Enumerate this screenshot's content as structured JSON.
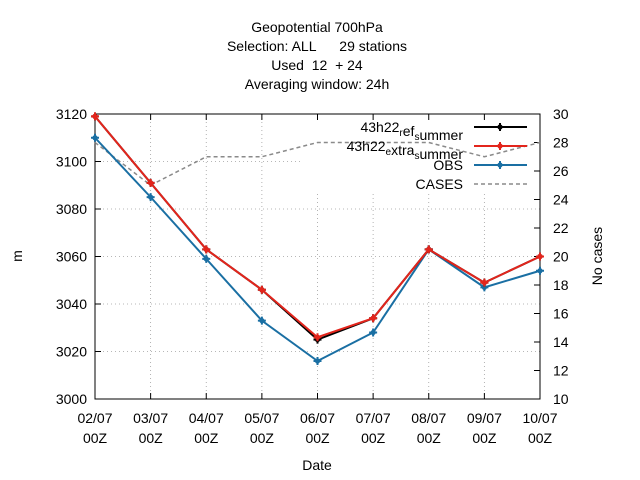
{
  "chart_data": {
    "type": "line",
    "title_lines": [
      "Geopotential 700hPa",
      "Selection: ALL      29 stations",
      "Used  12  + 24",
      "Averaging window: 24h"
    ],
    "xlabel": "Date",
    "ylabel": "m",
    "y2label": "No cases",
    "categories": [
      [
        "02/07",
        "00Z"
      ],
      [
        "03/07",
        "00Z"
      ],
      [
        "04/07",
        "00Z"
      ],
      [
        "05/07",
        "00Z"
      ],
      [
        "06/07",
        "00Z"
      ],
      [
        "07/07",
        "00Z"
      ],
      [
        "08/07",
        "00Z"
      ],
      [
        "09/07",
        "00Z"
      ],
      [
        "10/07",
        "00Z"
      ]
    ],
    "ylim": [
      3000,
      3120
    ],
    "yticks": [
      3000,
      3020,
      3040,
      3060,
      3080,
      3100,
      3120
    ],
    "y2lim": [
      10,
      30
    ],
    "y2ticks": [
      10,
      12,
      14,
      16,
      18,
      20,
      22,
      24,
      26,
      28,
      30
    ],
    "grid": true,
    "legend_position": "top-right",
    "series": [
      {
        "name": "43h22_ref_summer",
        "legend_parts": [
          [
            "43h22",
            0
          ],
          [
            "r",
            1
          ],
          [
            "ef",
            0
          ],
          [
            "s",
            1
          ],
          [
            "ummer",
            0
          ]
        ],
        "axis": "y1",
        "color": "#000000",
        "style": "solid",
        "marker": "plus",
        "values": [
          3119,
          3091,
          3063,
          3046,
          3025,
          3034,
          3063,
          3049,
          3060
        ]
      },
      {
        "name": "43h22_extra_summer",
        "legend_parts": [
          [
            "43h22",
            0
          ],
          [
            "e",
            1
          ],
          [
            "xtra",
            0
          ],
          [
            "s",
            1
          ],
          [
            "ummer",
            0
          ]
        ],
        "axis": "y1",
        "color": "#e3251c",
        "style": "solid",
        "marker": "plus",
        "values": [
          3119,
          3091,
          3063,
          3046,
          3026,
          3034,
          3063,
          3049,
          3060
        ]
      },
      {
        "name": "OBS",
        "legend_parts": [
          [
            "OBS",
            0
          ]
        ],
        "axis": "y1",
        "color": "#1a6fa3",
        "style": "solid",
        "marker": "plus",
        "values": [
          3110,
          3085,
          3059,
          3033,
          3016,
          3028,
          3063,
          3047,
          3054
        ]
      },
      {
        "name": "CASES",
        "legend_parts": [
          [
            "CASES",
            0
          ]
        ],
        "axis": "y2",
        "color": "#8a8a8a",
        "style": "dashed",
        "marker": "none",
        "values": [
          28,
          25,
          27,
          27,
          28,
          28,
          28,
          27,
          28
        ]
      }
    ]
  }
}
